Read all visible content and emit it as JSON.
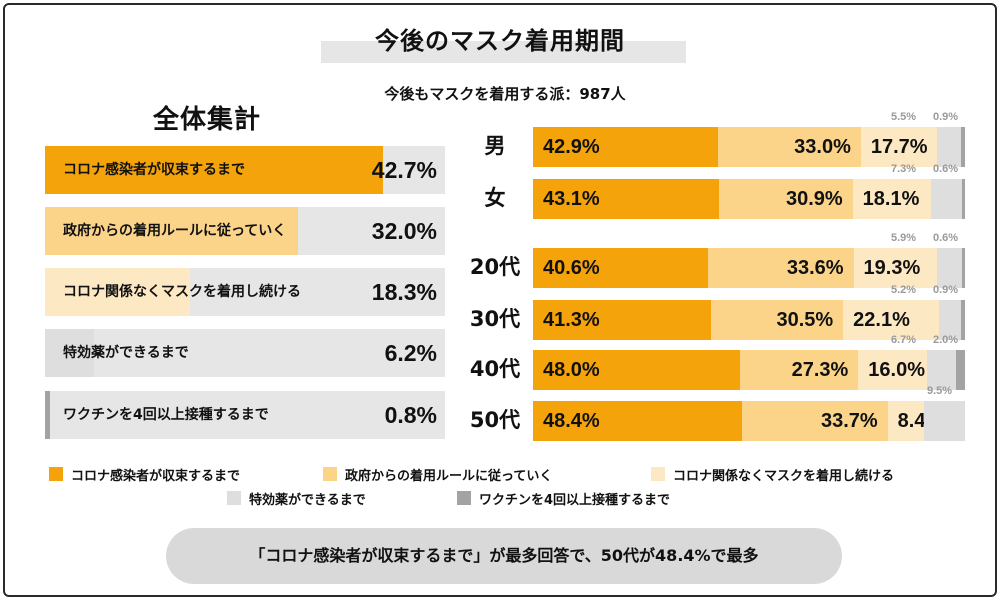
{
  "title": "今後のマスク着用期間",
  "subtitle": "今後もマスクを着用する派：987人",
  "overall_heading": "全体集計",
  "colors": {
    "cat1": "#f4a30a",
    "cat2": "#fbd48a",
    "cat3": "#fde8c4",
    "cat4": "#dedede",
    "cat5": "#a3a3a3",
    "track": "#e6e6e6",
    "note_bg": "#d9d9d9"
  },
  "chart_data": [
    {
      "type": "bar",
      "orientation": "horizontal",
      "title": "全体集計",
      "unit": "%",
      "xlim": [
        0,
        45
      ],
      "categories": [
        "コロナ感染者が収束するまで",
        "政府からの着用ルールに従っていく",
        "コロナ関係なくマスクを着用し続ける",
        "特効薬ができるまで",
        "ワクチンを4回以上接種するまで"
      ],
      "values": [
        42.7,
        32.0,
        18.3,
        6.2,
        0.8
      ],
      "value_labels": [
        "42.7%",
        "32.0%",
        "18.3%",
        "6.2%",
        "0.8%"
      ]
    },
    {
      "type": "bar",
      "orientation": "horizontal",
      "stacked": true,
      "unit": "%",
      "groups": [
        "男",
        "女",
        "20代",
        "30代",
        "40代",
        "50代"
      ],
      "series": [
        {
          "name": "コロナ感染者が収束するまで",
          "values": [
            42.9,
            43.1,
            40.6,
            41.3,
            48.0,
            48.4
          ],
          "labels": [
            "42.9%",
            "43.1%",
            "40.6%",
            "41.3%",
            "48.0%",
            "48.4%"
          ]
        },
        {
          "name": "政府からの着用ルールに従っていく",
          "values": [
            33.0,
            30.9,
            33.6,
            30.5,
            27.3,
            33.7
          ],
          "labels": [
            "33.0%",
            "30.9%",
            "33.6%",
            "30.5%",
            "27.3%",
            "33.7%"
          ]
        },
        {
          "name": "コロナ関係なくマスクを着用し続ける",
          "values": [
            17.7,
            18.1,
            19.3,
            22.1,
            16.0,
            8.4
          ],
          "labels": [
            "17.7%",
            "18.1%",
            "19.3%",
            "22.1%",
            "16.0%",
            "8.4%"
          ]
        },
        {
          "name": "特効薬ができるまで",
          "values": [
            5.5,
            7.3,
            5.9,
            5.2,
            6.7,
            9.5
          ],
          "labels": [
            "5.5%",
            "7.3%",
            "5.9%",
            "5.2%",
            "6.7%",
            "9.5%"
          ]
        },
        {
          "name": "ワクチンを4回以上接種するまで",
          "values": [
            0.9,
            0.6,
            0.6,
            0.9,
            2.0,
            0.0
          ],
          "labels": [
            "0.9%",
            "0.6%",
            "0.6%",
            "0.9%",
            "2.0%",
            ""
          ]
        }
      ],
      "legend": [
        "コロナ感染者が収束するまで",
        "政府からの着用ルールに従っていく",
        "コロナ関係なくマスクを着用し続ける",
        "特効薬ができるまで",
        "ワクチンを4回以上接種するまで"
      ]
    }
  ],
  "note": "「コロナ感染者が収束するまで」が最多回答で、50代が48.4%で最多"
}
